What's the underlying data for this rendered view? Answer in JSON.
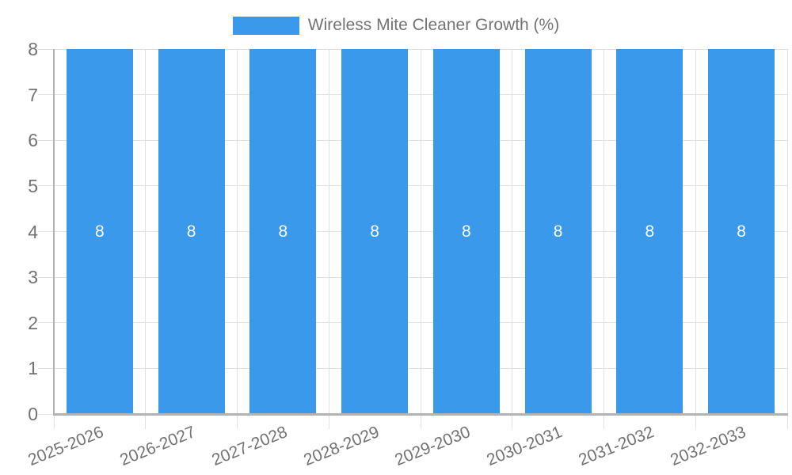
{
  "chart_data": {
    "type": "bar",
    "title": "Wireless Mite Cleaner Growth (%)",
    "legend": {
      "position": "top",
      "items": [
        {
          "label": "Wireless Mite Cleaner Growth (%)",
          "color": "#3b99ec"
        }
      ]
    },
    "categories": [
      "2025-2026",
      "2026-2027",
      "2027-2028",
      "2028-2029",
      "2029-2030",
      "2030-2031",
      "2031-2032",
      "2032-2033"
    ],
    "series": [
      {
        "name": "Wireless Mite Cleaner Growth (%)",
        "values": [
          8,
          8,
          8,
          8,
          8,
          8,
          8,
          8
        ]
      }
    ],
    "value_labels": [
      "8",
      "8",
      "8",
      "8",
      "8",
      "8",
      "8",
      "8"
    ],
    "xlabel": "",
    "ylabel": "",
    "ylim": [
      0,
      8
    ],
    "yticks": [
      0,
      1,
      2,
      3,
      4,
      5,
      6,
      7,
      8
    ],
    "grid": true,
    "colors": {
      "bar": "#3b99ec",
      "axis_text": "#737373",
      "grid_line": "#e2e2e2",
      "axis_line": "#b3b3b3",
      "value_label": "#ffffff"
    }
  }
}
